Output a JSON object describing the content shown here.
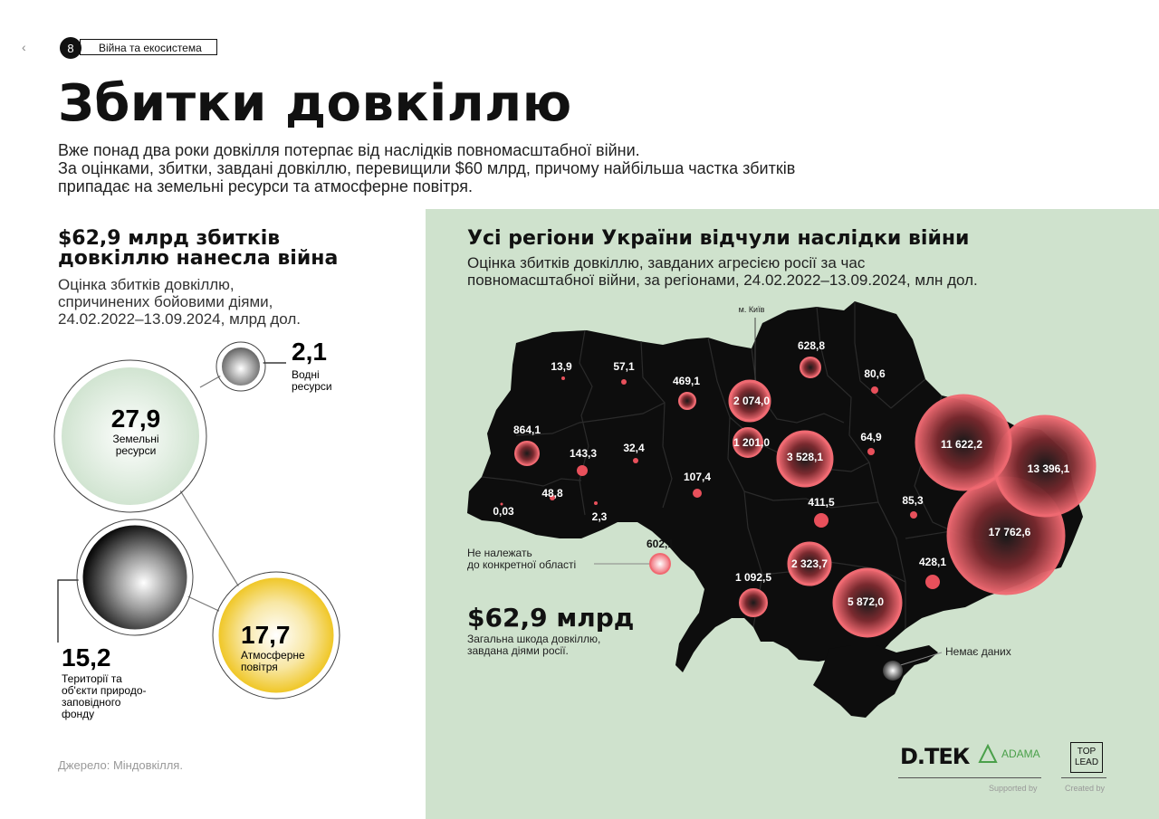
{
  "header": {
    "back": "‹",
    "page_number": "8",
    "section": "Війна та екосистема"
  },
  "title": "Збитки довкіллю",
  "intro": [
    "Вже понад два роки довкілля потерпає від наслідків повномасштабної війни.",
    "За оцінками, збитки, завдані довкіллю, перевищили $60 млрд, причому найбільша частка збитків",
    "припадає на земельні ресурси та атмосферне повітря."
  ],
  "left": {
    "headline": [
      "$62,9 млрд збитків",
      "довкіллю нанесла війна"
    ],
    "subtitle": [
      "Оцінка збитків довкіллю,",
      "спричинених бойовими діями,",
      "24.02.2022–13.09.2024, млрд дол."
    ],
    "source": "Джерело: Міндовкілля."
  },
  "map": {
    "title": "Усі регіони України відчули наслідки війни",
    "subtitle": [
      "Оцінка збитків довкіллю, завданих агресією росії за час",
      "повномасштабної війни, за регіонами, 24.02.2022–13.09.2024, млн дол."
    ],
    "kyiv_label": "м. Київ",
    "unassigned": [
      "Не належать",
      "до конкретної області"
    ],
    "no_data": "Немає даних",
    "total_value": "$62,9 млрд",
    "total_note": [
      "Загальна шкода довкіллю,",
      "завдана діями росії."
    ]
  },
  "logos": {
    "dtek": "D.ТЕК",
    "adama": "ADAMA",
    "top": "TOP",
    "lead": "LEAD",
    "supported": "Supported by",
    "created": "Created by"
  },
  "colors": {
    "map_bg": "#cfe2cd",
    "map_fill": "#0d0d0d",
    "bubble_red": "#e8505b",
    "land": "#d8ecd6",
    "air": "#f0c72a"
  },
  "chart_data": [
    {
      "type": "bubble",
      "title": "Оцінка збитків довкіллю, спричинених бойовими діями, 24.02.2022–13.09.2024, млрд дол.",
      "series": [
        {
          "name": "Земельні ресурси",
          "value": 27.9,
          "label": "27,9",
          "text": [
            "Земельні",
            "ресурси"
          ]
        },
        {
          "name": "Атмосферне повітря",
          "value": 17.7,
          "label": "17,7",
          "text": [
            "Атмосферне",
            "повітря"
          ]
        },
        {
          "name": "Території та об'єкти природо-заповідного фонду",
          "value": 15.2,
          "label": "15,2",
          "text": [
            "Території та",
            "об'єкти природо-",
            "заповідного",
            "фонду"
          ]
        },
        {
          "name": "Водні ресурси",
          "value": 2.1,
          "label": "2,1",
          "text": [
            "Водні",
            "ресурси"
          ]
        }
      ]
    },
    {
      "type": "bubble-map",
      "title": "Оцінка збитків довкіллю, завданих агресією росії за час повномасштабної війни, за регіонами, 24.02.2022–13.09.2024, млн дол.",
      "values": [
        {
          "label": "17 762,6",
          "value": 17762.6
        },
        {
          "label": "13 396,1",
          "value": 13396.1
        },
        {
          "label": "11 622,2",
          "value": 11622.2
        },
        {
          "label": "5 872,0",
          "value": 5872.0
        },
        {
          "label": "3 528,1",
          "value": 3528.1
        },
        {
          "label": "2 323,7",
          "value": 2323.7
        },
        {
          "label": "2 074,0",
          "value": 2074.0
        },
        {
          "label": "1 201,0",
          "value": 1201.0
        },
        {
          "label": "1 092,5",
          "value": 1092.5
        },
        {
          "label": "864,1",
          "value": 864.1
        },
        {
          "label": "628,8",
          "value": 628.8
        },
        {
          "label": "602,1",
          "value": 602.1
        },
        {
          "label": "469,1",
          "value": 469.1
        },
        {
          "label": "428,1",
          "value": 428.1
        },
        {
          "label": "411,5",
          "value": 411.5
        },
        {
          "label": "143,3",
          "value": 143.3
        },
        {
          "label": "107,4",
          "value": 107.4
        },
        {
          "label": "85,3",
          "value": 85.3
        },
        {
          "label": "80,6",
          "value": 80.6
        },
        {
          "label": "64,9",
          "value": 64.9
        },
        {
          "label": "57,1",
          "value": 57.1
        },
        {
          "label": "48,8",
          "value": 48.8
        },
        {
          "label": "32,4",
          "value": 32.4
        },
        {
          "label": "13,9",
          "value": 13.9
        },
        {
          "label": "2,3",
          "value": 2.3
        },
        {
          "label": "0,03",
          "value": 0.03
        }
      ]
    }
  ]
}
